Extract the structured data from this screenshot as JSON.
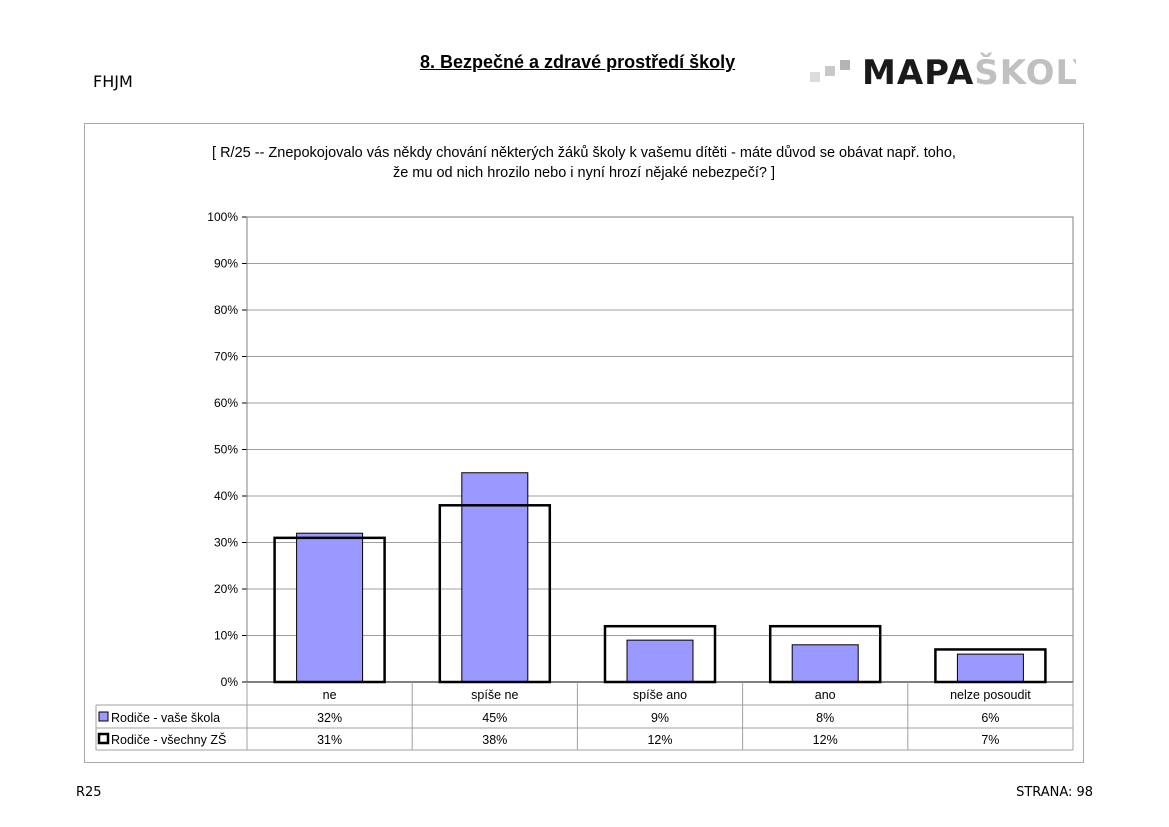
{
  "header": {
    "school_code": "FHJM",
    "section_title": "8. Bezpečné a zdravé prostředí školy",
    "logo_text_bold": "MAPA",
    "logo_text_light": "ŠKOLY"
  },
  "chart_data": {
    "type": "bar",
    "title_line1": "[ R/25 -- Znepokojovalo vás někdy chování některých žáků školy k vašemu dítěti - máte důvod se obávat např. toho,",
    "title_line2": "že mu od nich hrozilo nebo i nyní hrozí nějaké nebezpečí? ]",
    "categories": [
      "ne",
      "spíše ne",
      "spíše ano",
      "ano",
      "nelze posoudit"
    ],
    "series": [
      {
        "name": "Rodiče - vaše škola",
        "values": [
          32,
          45,
          9,
          8,
          6
        ],
        "labels": [
          "32%",
          "45%",
          "9%",
          "8%",
          "6%"
        ],
        "color": "#9999ff"
      },
      {
        "name": "Rodiče - všechny ZŠ",
        "values": [
          31,
          38,
          12,
          12,
          7
        ],
        "labels": [
          "31%",
          "38%",
          "12%",
          "12%",
          "7%"
        ],
        "color": "#ffffff"
      }
    ],
    "ylim": [
      0,
      100
    ],
    "yticks": [
      "0%",
      "10%",
      "20%",
      "30%",
      "40%",
      "50%",
      "60%",
      "70%",
      "80%",
      "90%",
      "100%"
    ],
    "grid": true,
    "legend": "data table below chart"
  },
  "footer": {
    "code": "R25",
    "page_label": "STRANA:",
    "page_number": "98"
  }
}
